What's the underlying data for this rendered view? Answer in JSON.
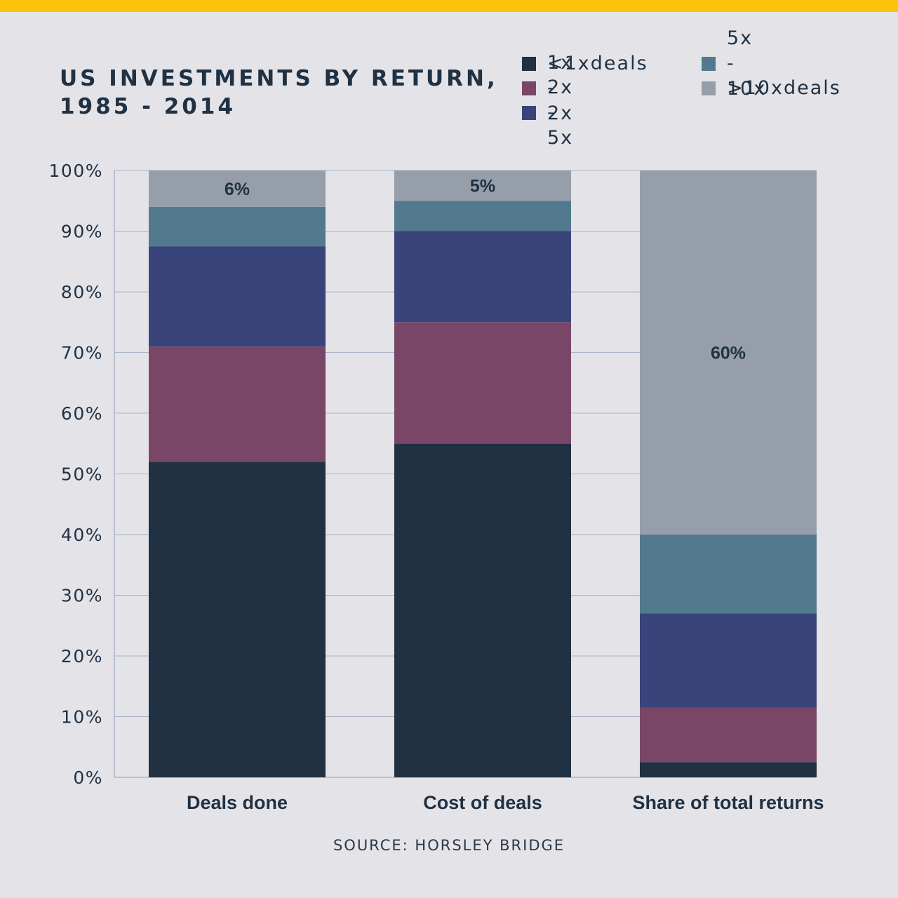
{
  "colors": {
    "background": "#e4e3e7",
    "accent_bar": "#fdc20b",
    "text": "#1f3143",
    "gridline": "#a9b4c8"
  },
  "title_lines": [
    "US INVESTMENTS BY RETURN,",
    "1985 - 2014"
  ],
  "source": "SOURCE: HORSLEY BRIDGE",
  "legend": [
    {
      "label": "<1xdeals",
      "color": "#1f3143"
    },
    {
      "label": "1x - 2x",
      "color": "#7a4668"
    },
    {
      "label": "2x - 5x",
      "color": "#39447b"
    },
    {
      "label": "5x - 10x",
      "color": "#52798e"
    },
    {
      "label": ">10xdeals",
      "color": "#969fa9"
    }
  ],
  "chart_data": {
    "type": "bar",
    "stacked": true,
    "title": "US INVESTMENTS BY RETURN, 1985 - 2014",
    "categories": [
      "Deals done",
      "Cost of deals",
      "Share of total returns"
    ],
    "series": [
      {
        "name": "<1xdeals",
        "color": "#1f3143",
        "values": [
          52,
          55,
          2.5
        ]
      },
      {
        "name": "1x - 2x",
        "color": "#7a4668",
        "values": [
          19,
          20,
          9
        ]
      },
      {
        "name": "2x - 5x",
        "color": "#39447b",
        "values": [
          16.5,
          15,
          15.5
        ]
      },
      {
        "name": "5x - 10x",
        "color": "#52798e",
        "values": [
          6.5,
          5,
          13
        ]
      },
      {
        "name": ">10xdeals",
        "color": "#969fa9",
        "values": [
          6,
          5,
          60
        ]
      }
    ],
    "bar_labels": [
      {
        "category": "Deals done",
        "series": ">10xdeals",
        "text": "6%"
      },
      {
        "category": "Cost of deals",
        "series": ">10xdeals",
        "text": "5%"
      },
      {
        "category": "Share of total returns",
        "series": ">10xdeals",
        "text": "60%"
      }
    ],
    "y_ticks": [
      "0%",
      "10%",
      "20%",
      "30%",
      "40%",
      "50%",
      "60%",
      "70%",
      "80%",
      "90%",
      "100%"
    ],
    "ylim": [
      0,
      100
    ],
    "grid": true,
    "legend_position": "top-right"
  }
}
